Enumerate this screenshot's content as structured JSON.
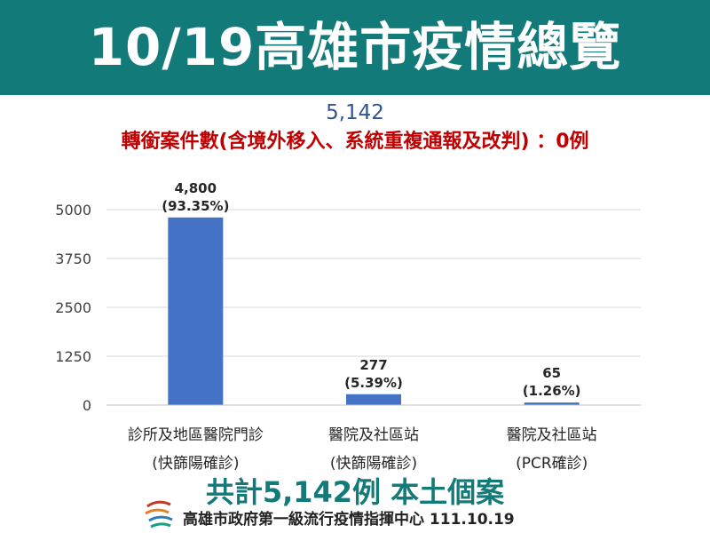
{
  "header": {
    "title": "10/19高雄市疫情總覽"
  },
  "summary": {
    "total": "5,142",
    "transfer_note": "轉銜案件數(含境外移入、系統重複通報及改判) ：0例"
  },
  "chart_data": {
    "type": "bar",
    "categories": [
      [
        "診所及地區醫院門診",
        "(快篩陽確診)"
      ],
      [
        "醫院及社區站",
        "(快篩陽確診)"
      ],
      [
        "醫院及社區站",
        "(PCR確診)"
      ]
    ],
    "values": [
      4800,
      277,
      65
    ],
    "value_labels": [
      "4,800",
      "277",
      "65"
    ],
    "percent_labels": [
      "(93.35%)",
      "(5.39%)",
      "(1.26%)"
    ],
    "yticks": [
      0,
      1250,
      2500,
      3750,
      5000
    ],
    "ylim": [
      0,
      5000
    ],
    "grid": true,
    "bar_color": "#4472c4"
  },
  "footer": {
    "total_text": "共計5,142例 本土個案",
    "org_text": "高雄市政府第一級流行疫情指揮中心 111.10.19"
  },
  "colors": {
    "header_bg": "#137a7a",
    "total_blue": "#2f5597",
    "note_red": "#c00000"
  },
  "icons": {
    "logo": "kaohsiung-city-logo"
  }
}
